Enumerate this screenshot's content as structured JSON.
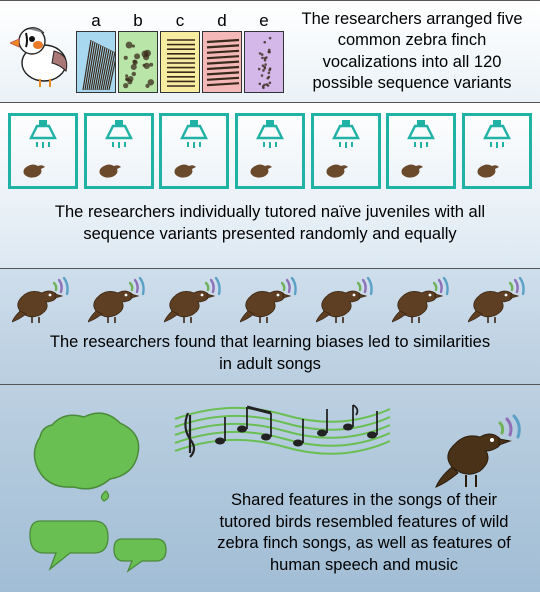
{
  "panel1": {
    "text": "The researchers arranged five common zebra finch vocalizations into all 120 possible sequence variants",
    "specs": [
      {
        "label": "a",
        "bg": "#a7d8f0",
        "pattern": "lines-steep"
      },
      {
        "label": "b",
        "bg": "#b9e6a8",
        "pattern": "blotches"
      },
      {
        "label": "c",
        "bg": "#f7eda0",
        "pattern": "hstripes"
      },
      {
        "label": "d",
        "bg": "#f4b8b8",
        "pattern": "hstripes-wide"
      },
      {
        "label": "e",
        "bg": "#d4b8ea",
        "pattern": "noise-col"
      }
    ],
    "spec_stroke": "#3a2a1c",
    "finch_colors": {
      "body": "#ffffff",
      "outline": "#222",
      "beak": "#f08a1e",
      "cheek": "#e87a2a",
      "eye_stripe": "#111"
    }
  },
  "panel2": {
    "text": "The researchers individually tutored naïve juveniles with all sequence variants presented randomly and equally",
    "cage_count": 7,
    "cage_border": "#21b2a6",
    "speaker_color": "#21b2a6",
    "bird_color": "#6b4a2c"
  },
  "panel3": {
    "text": "The researchers found that learning biases led to similarities in adult songs",
    "bird_count": 7,
    "bird_color": "#5e3f23",
    "arc_colors": [
      "#6fb257",
      "#8e6fb8",
      "#5aa0c7"
    ]
  },
  "panel4": {
    "text": "Shared features in the songs of their tutored birds resembled features of wild zebra finch songs, as well as features of human speech and music",
    "australia_color": "#6abf52",
    "music_color": "#6abf52",
    "bubble_color": "#6abf52",
    "bird_color": "#4a3218",
    "arc_colors": [
      "#6fb257",
      "#8e6fb8",
      "#5aa0c7"
    ]
  },
  "fonts": {
    "body_size": 16.5
  }
}
